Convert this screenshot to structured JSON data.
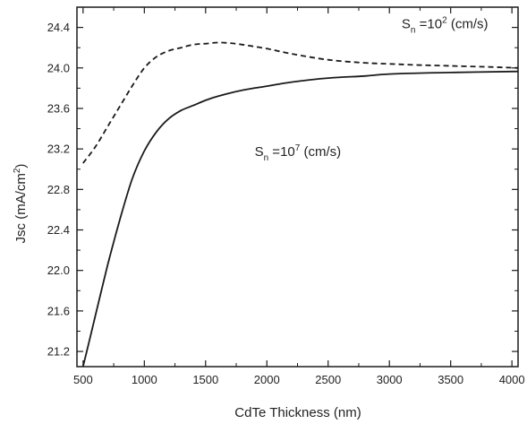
{
  "chart_data": {
    "type": "line",
    "xlabel": "CdTe Thickness (nm)",
    "ylabel": {
      "base": "Jsc (mA/cm",
      "sup": "2",
      "tail": ")"
    },
    "xlim": [
      450,
      4050
    ],
    "ylim": [
      21.05,
      24.6
    ],
    "x_ticks": [
      500,
      1000,
      1500,
      2000,
      2500,
      3000,
      3500,
      4000
    ],
    "x_tick_labels": [
      "500",
      "1000",
      "1500",
      "2000",
      "2500",
      "3000",
      "3500",
      "4000"
    ],
    "y_ticks": [
      21.2,
      21.6,
      22.0,
      22.4,
      22.8,
      23.2,
      23.6,
      24.0,
      24.4
    ],
    "y_tick_labels": [
      "21.2",
      "21.6",
      "22.0",
      "22.4",
      "22.8",
      "23.2",
      "23.6",
      "24.0",
      "24.4"
    ],
    "grid": false,
    "legend": "none",
    "series": [
      {
        "style": "dashed",
        "x": [
          500,
          600,
          700,
          800,
          900,
          1000,
          1100,
          1200,
          1300,
          1400,
          1500,
          1600,
          1700,
          1800,
          2000,
          2200,
          2500,
          2800,
          3000,
          3200,
          3500,
          3800,
          4050
        ],
        "y": [
          23.06,
          23.22,
          23.42,
          23.62,
          23.82,
          24.0,
          24.11,
          24.17,
          24.2,
          24.23,
          24.24,
          24.25,
          24.245,
          24.23,
          24.19,
          24.14,
          24.08,
          24.05,
          24.04,
          24.03,
          24.02,
          24.01,
          24.0
        ]
      },
      {
        "style": "solid",
        "x": [
          500,
          550,
          600,
          700,
          800,
          900,
          1000,
          1100,
          1200,
          1300,
          1400,
          1500,
          1600,
          1800,
          2000,
          2200,
          2500,
          2800,
          3000,
          3500,
          4050
        ],
        "y": [
          21.05,
          21.3,
          21.55,
          22.05,
          22.5,
          22.9,
          23.18,
          23.37,
          23.5,
          23.58,
          23.63,
          23.68,
          23.72,
          23.78,
          23.82,
          23.86,
          23.9,
          23.92,
          23.94,
          23.955,
          23.965
        ]
      }
    ],
    "annotations": [
      {
        "base": "S",
        "sub": "n",
        "mid": " =10",
        "sup": "2",
        "tail": " (cm/s)",
        "anchor_x": 3100,
        "anchor_y": 24.39
      },
      {
        "base": "S",
        "sub": "n",
        "mid": " =10",
        "sup": "7",
        "tail": " (cm/s)",
        "anchor_x": 1900,
        "anchor_y": 23.13
      }
    ]
  }
}
